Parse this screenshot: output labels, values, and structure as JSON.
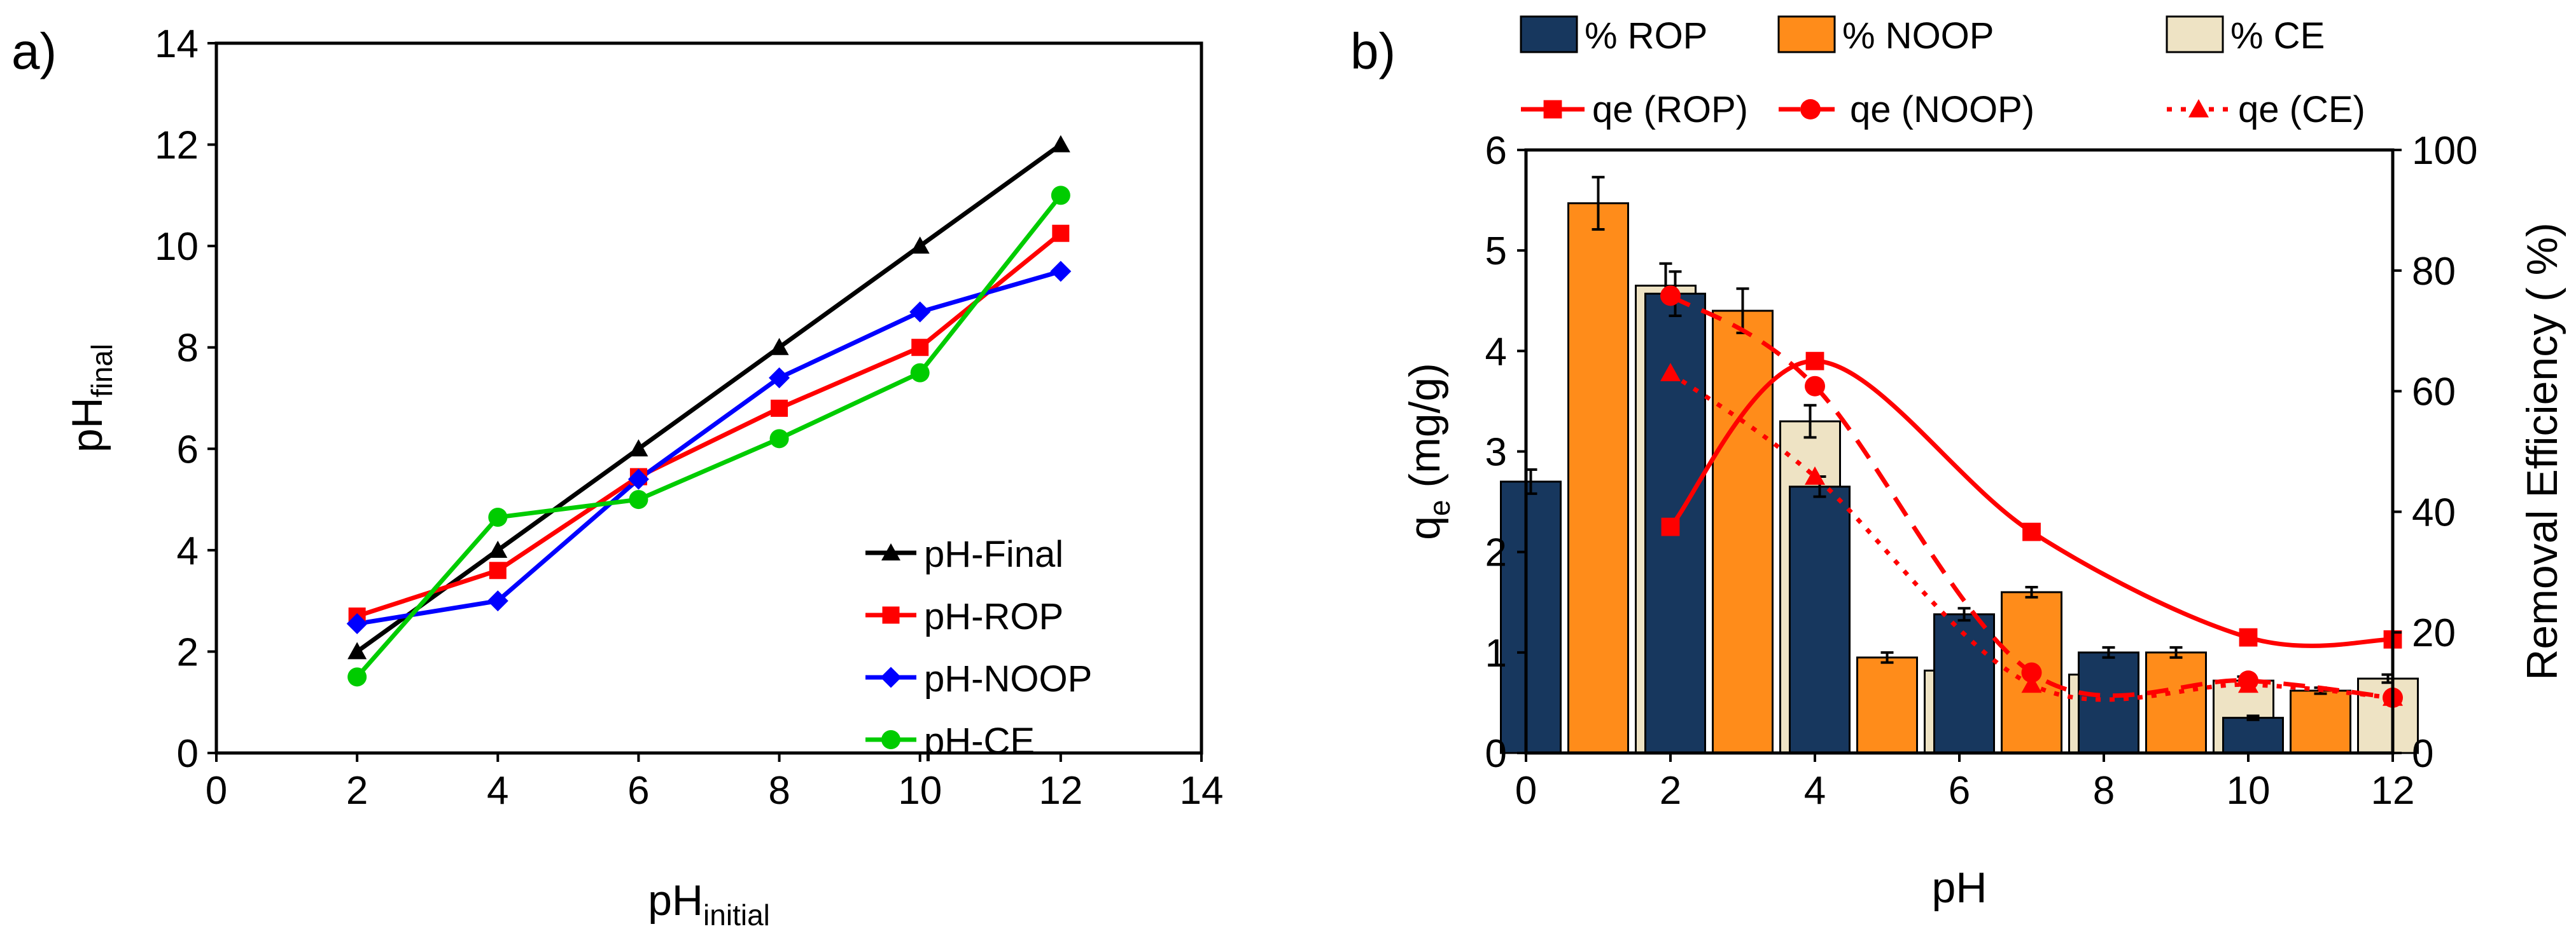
{
  "chart_data": [
    {
      "panel_label": "a)",
      "type": "line",
      "xlabel": "pH",
      "xlabel_sub": "initial",
      "ylabel": "pH",
      "ylabel_sub": "final",
      "xlim": [
        0,
        14
      ],
      "ylim": [
        0,
        14
      ],
      "xticks": [
        "0",
        "2",
        "4",
        "6",
        "8",
        "10",
        "12",
        "14"
      ],
      "yticks": [
        "0",
        "2",
        "4",
        "6",
        "8",
        "10",
        "12",
        "14"
      ],
      "x": [
        2,
        4,
        6,
        8,
        10,
        12
      ],
      "series": [
        {
          "name": "pH-Final",
          "color": "#000000",
          "marker": "triangle",
          "values": [
            2.0,
            4.0,
            6.0,
            8.0,
            10.0,
            12.0
          ]
        },
        {
          "name": "pH-ROP",
          "color": "#ff0000",
          "marker": "square",
          "values": [
            2.7,
            3.6,
            5.45,
            6.8,
            8.0,
            10.25
          ]
        },
        {
          "name": "pH-NOOP",
          "color": "#0000ff",
          "marker": "diamond",
          "values": [
            2.55,
            3.0,
            5.4,
            7.4,
            8.7,
            9.5
          ]
        },
        {
          "name": "pH-CE",
          "color": "#00cc00",
          "marker": "circle",
          "values": [
            1.5,
            4.65,
            5.0,
            6.2,
            7.5,
            11.0
          ]
        }
      ],
      "legend_position": "bottom-right",
      "grid": false
    },
    {
      "panel_label": "b)",
      "type": "bar",
      "xlabel": "pH",
      "ylabel": "q",
      "ylabel_sub": "e",
      "ylabel_rest": " (mg/g)",
      "y2label": "Removal Efficiency ( %)",
      "xlim": [
        0,
        12
      ],
      "ylim": [
        0,
        6
      ],
      "y2lim": [
        0,
        100
      ],
      "xticks": [
        "0",
        "2",
        "4",
        "6",
        "8",
        "10",
        "12"
      ],
      "yticks": [
        "0",
        "1",
        "2",
        "3",
        "4",
        "5",
        "6"
      ],
      "y2ticks": [
        "0",
        "20",
        "40",
        "60",
        "80",
        "100"
      ],
      "bar_groups_x": [
        1,
        3,
        5,
        7,
        9,
        11
      ],
      "bar_series": [
        {
          "name": "% ROP",
          "color": "#17375e",
          "values": [
            2.7,
            4.57,
            2.65,
            1.38,
            1.0,
            0.35
          ],
          "errors": [
            0.12,
            0.22,
            0.1,
            0.06,
            0.05,
            0.02
          ]
        },
        {
          "name": "% NOOP",
          "color": "#ff8c1a",
          "values": [
            5.47,
            4.4,
            0.95,
            1.6,
            1.0,
            0.62
          ],
          "errors": [
            0.26,
            0.22,
            0.05,
            0.05,
            0.05,
            0.03
          ]
        },
        {
          "name": "% CE",
          "color": "#eee3c4",
          "values": [
            4.65,
            3.3,
            0.82,
            0.78,
            0.72,
            0.74
          ],
          "errors": [
            0.22,
            0.16,
            0.04,
            0.04,
            0.04,
            0.04
          ]
        }
      ],
      "qe_x": [
        2,
        4,
        7,
        10,
        12
      ],
      "line_series": [
        {
          "name": "qe (ROP)",
          "color": "#ff0000",
          "marker": "square",
          "dash": "solid",
          "values": [
            2.25,
            3.9,
            2.2,
            1.15,
            1.13
          ]
        },
        {
          "name": "qe (NOOP)",
          "color": "#ff0000",
          "marker": "circle",
          "dash": "dashed",
          "values": [
            4.55,
            3.65,
            0.8,
            0.72,
            0.55
          ]
        },
        {
          "name": "qe (CE)",
          "color": "#ff0000",
          "marker": "triangle",
          "dash": "dotted",
          "values": [
            3.78,
            2.75,
            0.68,
            0.68,
            0.55
          ]
        }
      ],
      "legend_position": "top",
      "grid": false
    }
  ]
}
